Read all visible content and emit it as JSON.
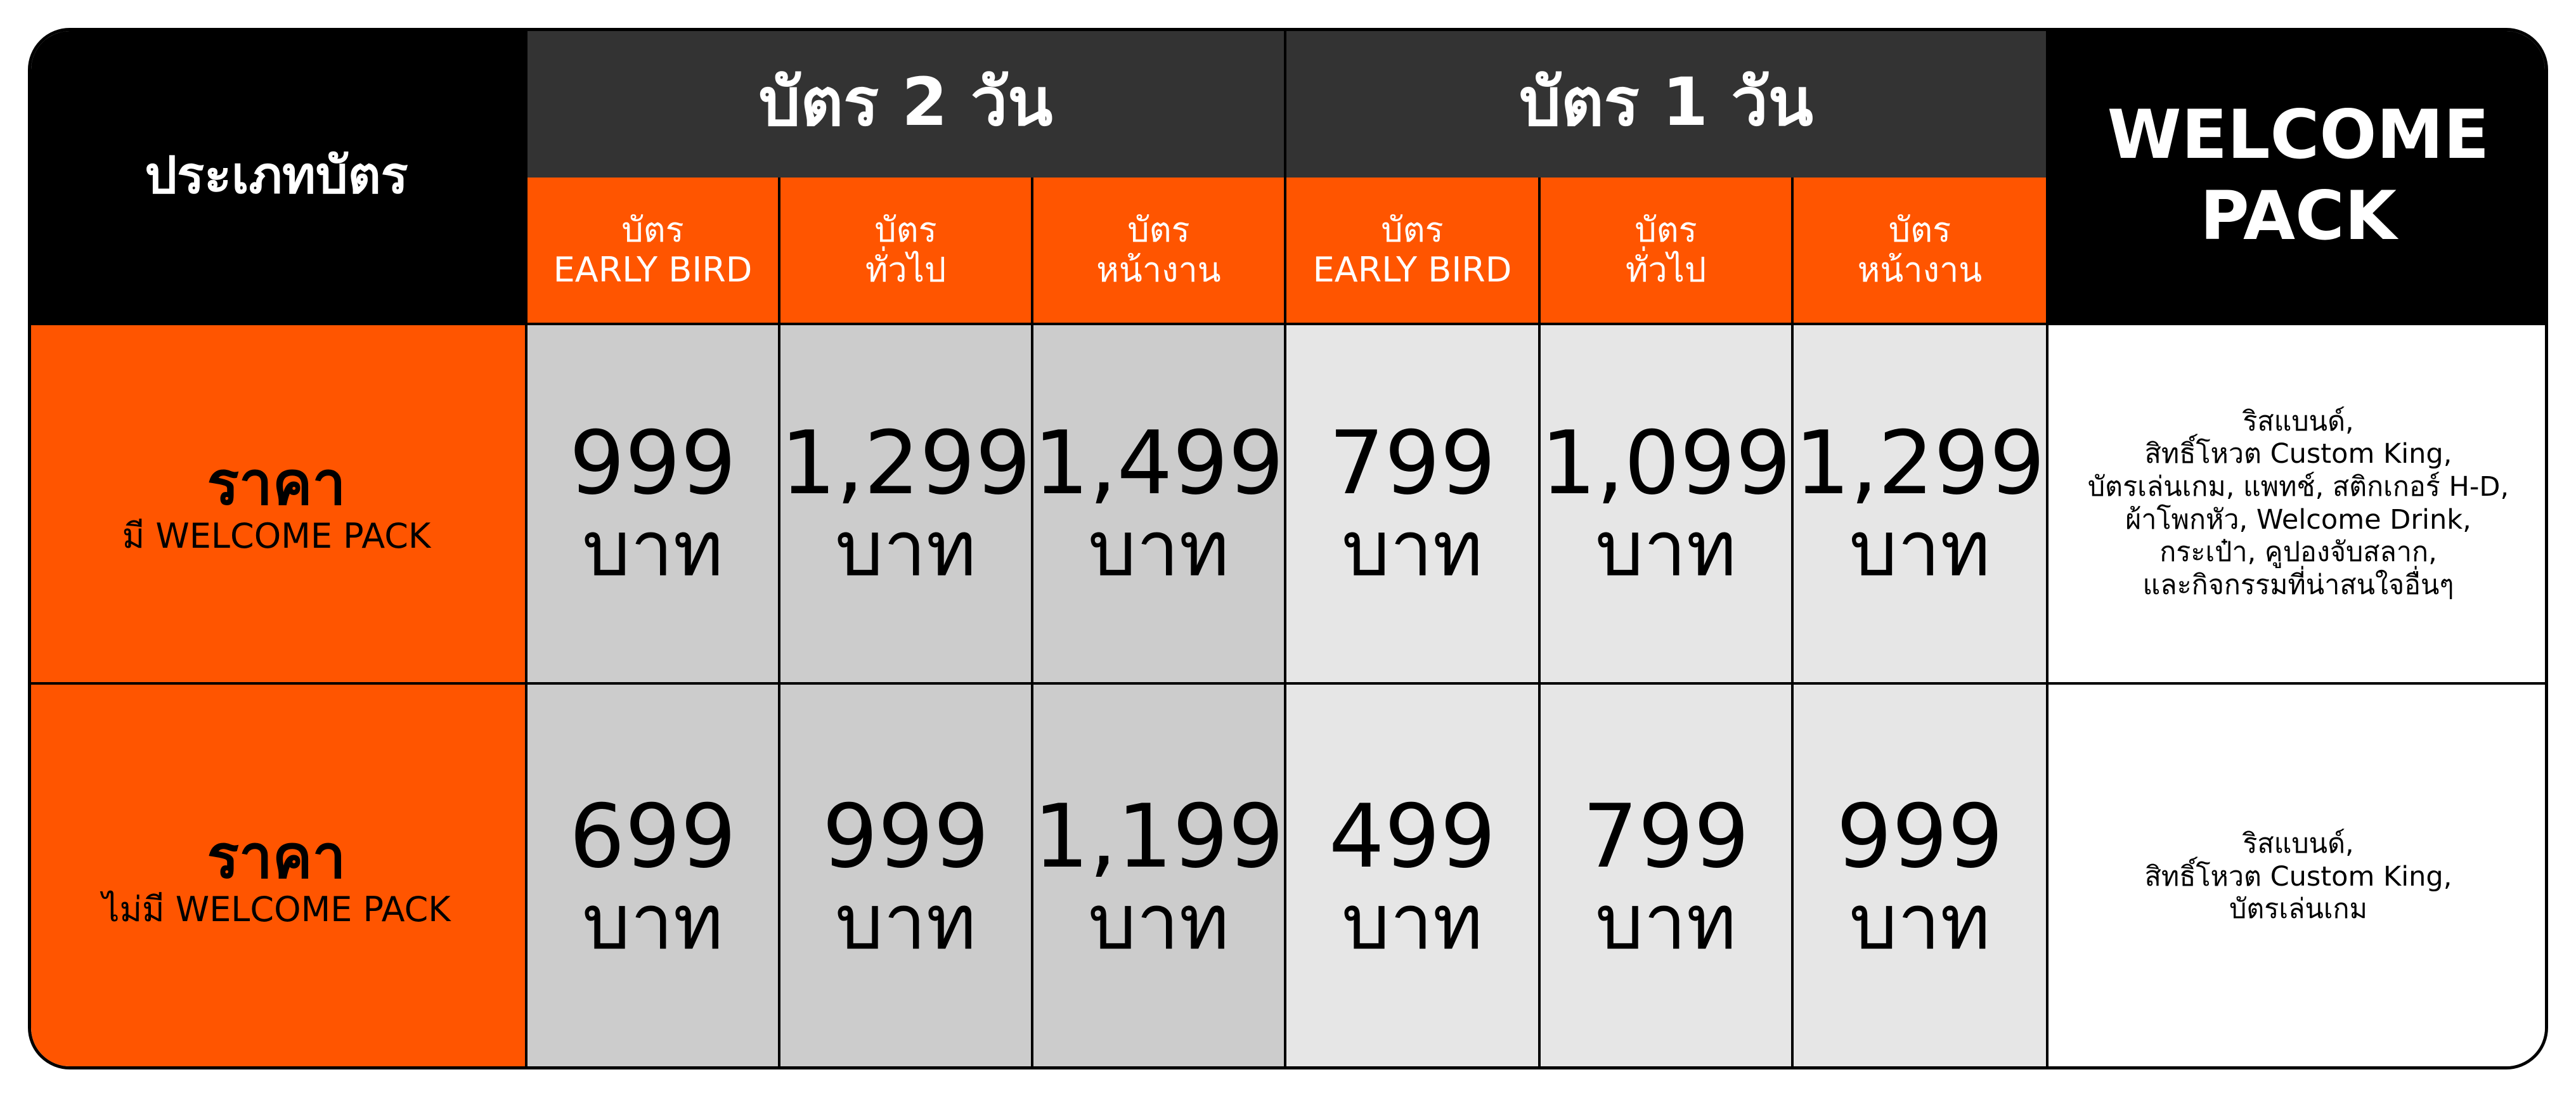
{
  "header": {
    "corner": "ประเภทบัตร",
    "groups": [
      "บัตร 2 วัน",
      "บัตร 1 วัน"
    ],
    "welcome_title": [
      "WELCOME",
      "PACK"
    ],
    "subheaders": [
      [
        "บัตร",
        "EARLY BIRD"
      ],
      [
        "บัตร",
        "ทั่วไป"
      ],
      [
        "บัตร",
        "หน้างาน"
      ],
      [
        "บัตร",
        "EARLY BIRD"
      ],
      [
        "บัตร",
        "ทั่วไป"
      ],
      [
        "บัตร",
        "หน้างาน"
      ]
    ]
  },
  "rows": [
    {
      "label": "ราคา",
      "sublabel": "มี WELCOME PACK",
      "prices": [
        {
          "price": "999",
          "unit": "บาท"
        },
        {
          "price": "1,299",
          "unit": "บาท"
        },
        {
          "price": "1,499",
          "unit": "บาท"
        },
        {
          "price": "799",
          "unit": "บาท"
        },
        {
          "price": "1,099",
          "unit": "บาท"
        },
        {
          "price": "1,299",
          "unit": "บาท"
        }
      ],
      "welcome": [
        "ริสแบนด์,",
        "สิทธิ์โหวต Custom King,",
        "บัตรเล่นเกม, แพทช์, สติกเกอร์ H-D,",
        "ผ้าโพกหัว, Welcome Drink,",
        "กระเป๋า, คูปองจับสลาก,",
        "และกิจกรรมที่น่าสนใจอื่นๆ"
      ]
    },
    {
      "label": "ราคา",
      "sublabel": "ไม่มี WELCOME PACK",
      "prices": [
        {
          "price": "699",
          "unit": "บาท"
        },
        {
          "price": "999",
          "unit": "บาท"
        },
        {
          "price": "1,199",
          "unit": "บาท"
        },
        {
          "price": "499",
          "unit": "บาท"
        },
        {
          "price": "799",
          "unit": "บาท"
        },
        {
          "price": "999",
          "unit": "บาท"
        }
      ],
      "welcome": [
        "ริสแบนด์,",
        "สิทธิ์โหวต Custom King,",
        "บัตรเล่นเกม"
      ]
    }
  ]
}
